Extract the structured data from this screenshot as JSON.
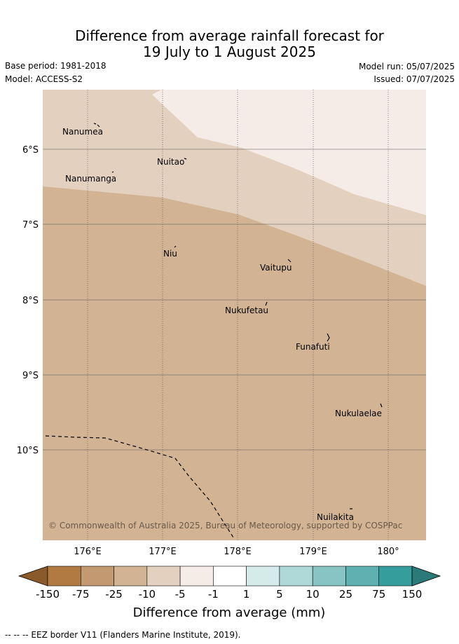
{
  "title": {
    "line1": "Difference from average rainfall forecast for",
    "line2": "19 July to 1 August 2025"
  },
  "meta": {
    "base_period": "Base period: 1981-2018",
    "model": "Model: ACCESS-S2",
    "model_run": "Model run: 05/07/2025",
    "issued": "Issued: 07/07/2025"
  },
  "map": {
    "lat_labels": [
      "6°S",
      "7°S",
      "8°S",
      "9°S",
      "10°S"
    ],
    "lon_labels": [
      "176°E",
      "177°E",
      "178°E",
      "179°E",
      "180°"
    ],
    "places": [
      "Nanumea",
      "Nuitao",
      "Nanumanga",
      "Niu",
      "Vaitupu",
      "Nukufetau",
      "Funafuti",
      "Nukulaelae",
      "Nuilakita"
    ],
    "copyright": "© Commonwealth of Australia 2025, Bureau of Meteorology, supported by COSPPac",
    "fill_colors": {
      "category_-25_to_-10": "#d2b394",
      "category_-10_to_-5": "#e3d0bf",
      "category_-5_to_-1": "#f5ece7"
    }
  },
  "colorbar": {
    "labels": [
      "-150",
      "-75",
      "-25",
      "-10",
      "-5",
      "-1",
      "1",
      "5",
      "10",
      "25",
      "75",
      "150"
    ],
    "colors": [
      "#8b5a2b",
      "#b07a42",
      "#c29970",
      "#d2b394",
      "#e3d0bf",
      "#f5ece7",
      "#ffffff",
      "#d5ebea",
      "#aed9d8",
      "#87c4c3",
      "#5eb1b0",
      "#359e9c",
      "#2a7a79"
    ],
    "title": "Difference from average (mm)"
  },
  "footnote": "--  --  -- EEZ border V11 (Flanders Marine Institute, 2019)."
}
